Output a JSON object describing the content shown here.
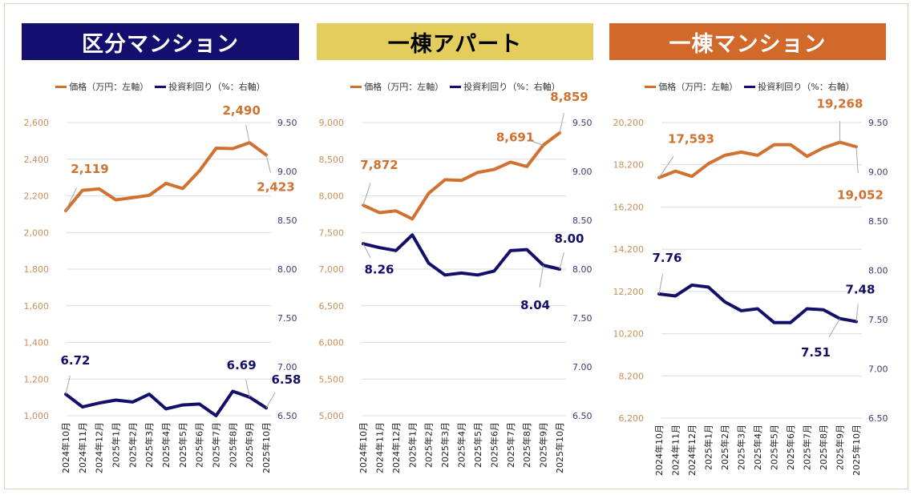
{
  "legend": {
    "price": "価格（万円：左軸）",
    "yield": "投資利回り（%：右軸）"
  },
  "colors": {
    "price": "#d0712f",
    "yield": "#14106a",
    "price_axis": "#c98f57",
    "yield_axis": "#3d3a75"
  },
  "chart_data": [
    {
      "type": "line",
      "title": "区分マンション",
      "title_bg": "#140e6e",
      "title_color": "#ffffff",
      "categories": [
        "2024年10月",
        "2024年11月",
        "2024年12月",
        "2025年1月",
        "2025年2月",
        "2025年3月",
        "2025年4月",
        "2025年5月",
        "2025年6月",
        "2025年7月",
        "2025年8月",
        "2025年9月",
        "2025年10月"
      ],
      "series": [
        {
          "name": "価格（万円：左軸）",
          "axis": "left",
          "values": [
            2119,
            2230,
            2238,
            2178,
            2190,
            2203,
            2268,
            2240,
            2336,
            2460,
            2458,
            2490,
            2423
          ],
          "labels": [
            {
              "i": 0,
              "text": "2,119"
            },
            {
              "i": 11,
              "text": "2,490"
            },
            {
              "i": 12,
              "text": "2,423"
            }
          ]
        },
        {
          "name": "投資利回り（%：右軸）",
          "axis": "right",
          "values": [
            6.72,
            6.59,
            6.63,
            6.66,
            6.64,
            6.72,
            6.57,
            6.61,
            6.62,
            6.5,
            6.75,
            6.69,
            6.58
          ],
          "labels": [
            {
              "i": 0,
              "text": "6.72"
            },
            {
              "i": 11,
              "text": "6.69"
            },
            {
              "i": 12,
              "text": "6.58"
            }
          ]
        }
      ],
      "left_ticks": [
        "1,000",
        "1,200",
        "1,400",
        "1,600",
        "1,800",
        "2,000",
        "2,200",
        "2,400",
        "2,600"
      ],
      "left_range": [
        1000,
        2600
      ],
      "right_ticks": [
        "6.50",
        "7.00",
        "7.50",
        "8.00",
        "8.50",
        "9.00",
        "9.50"
      ],
      "right_range": [
        6.5,
        9.5
      ],
      "grid": true
    },
    {
      "type": "line",
      "title": "一棟アパート",
      "title_bg": "#e3cd5c",
      "title_color": "#000000",
      "categories": [
        "2024年10月",
        "2024年11月",
        "2024年12月",
        "2025年1月",
        "2025年2月",
        "2025年3月",
        "2025年4月",
        "2025年5月",
        "2025年6月",
        "2025年7月",
        "2025年8月",
        "2025年9月",
        "2025年10月"
      ],
      "series": [
        {
          "name": "価格（万円：左軸）",
          "axis": "left",
          "values": [
            7872,
            7770,
            7795,
            7685,
            8035,
            8220,
            8210,
            8320,
            8360,
            8460,
            8400,
            8691,
            8859
          ],
          "labels": [
            {
              "i": 0,
              "text": "7,872"
            },
            {
              "i": 11,
              "text": "8,691"
            },
            {
              "i": 12,
              "text": "8,859"
            }
          ]
        },
        {
          "name": "投資利回り（%：右軸）",
          "axis": "right",
          "values": [
            8.26,
            8.22,
            8.19,
            8.35,
            8.06,
            7.94,
            7.96,
            7.94,
            7.98,
            8.19,
            8.2,
            8.04,
            8.0
          ],
          "labels": [
            {
              "i": 0,
              "text": "8.26"
            },
            {
              "i": 11,
              "text": "8.04"
            },
            {
              "i": 12,
              "text": "8.00"
            }
          ]
        }
      ],
      "left_ticks": [
        "5,000",
        "5,500",
        "6,000",
        "6,500",
        "7,000",
        "7,500",
        "8,000",
        "8,500",
        "9,000"
      ],
      "left_range": [
        5000,
        9000
      ],
      "right_ticks": [
        "6.50",
        "7.00",
        "7.50",
        "8.00",
        "8.50",
        "9.00",
        "9.50"
      ],
      "right_range": [
        6.5,
        9.5
      ],
      "grid": true
    },
    {
      "type": "line",
      "title": "一棟マンション",
      "title_bg": "#d0692a",
      "title_color": "#ffffff",
      "categories": [
        "2024年10月",
        "2024年11月",
        "2024年12月",
        "2025年1月",
        "2025年2月",
        "2025年3月",
        "2025年4月",
        "2025年5月",
        "2025年6月",
        "2025年7月",
        "2025年8月",
        "2025年9月",
        "2025年10月"
      ],
      "series": [
        {
          "name": "価格（万円：左軸）",
          "axis": "left",
          "values": [
            17593,
            17900,
            17650,
            18250,
            18650,
            18800,
            18650,
            19150,
            19150,
            18600,
            19000,
            19268,
            19052
          ],
          "labels": [
            {
              "i": 0,
              "text": "17,593"
            },
            {
              "i": 11,
              "text": "19,268"
            },
            {
              "i": 12,
              "text": "19,052"
            }
          ]
        },
        {
          "name": "投資利回り（%：右軸）",
          "axis": "right",
          "values": [
            7.76,
            7.74,
            7.85,
            7.83,
            7.68,
            7.59,
            7.61,
            7.47,
            7.47,
            7.61,
            7.6,
            7.51,
            7.48
          ],
          "labels": [
            {
              "i": 0,
              "text": "7.76"
            },
            {
              "i": 11,
              "text": "7.51"
            },
            {
              "i": 12,
              "text": "7.48"
            }
          ]
        }
      ],
      "left_ticks": [
        "6,200",
        "8,200",
        "10,200",
        "12,200",
        "14,200",
        "16,200",
        "18,200",
        "20,200"
      ],
      "left_range": [
        6200,
        20200
      ],
      "right_ticks": [
        "6.50",
        "7.00",
        "7.50",
        "8.00",
        "8.50",
        "9.00",
        "9.50"
      ],
      "right_range": [
        6.5,
        9.5
      ],
      "grid": true
    }
  ]
}
